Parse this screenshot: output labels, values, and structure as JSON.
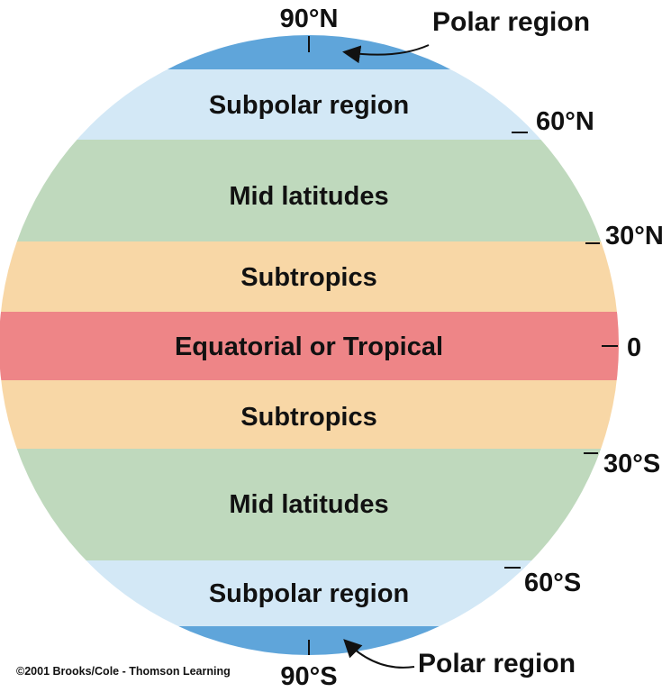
{
  "zones": [
    {
      "label": "",
      "color": "#5fa5da"
    },
    {
      "label": "Subpolar region",
      "color": "#d3e8f6"
    },
    {
      "label": "Mid latitudes",
      "color": "#bfd9bd"
    },
    {
      "label": "Subtropics",
      "color": "#f8d7a6"
    },
    {
      "label": "Equatorial or Tropical",
      "color": "#ee8587"
    },
    {
      "label": "Subtropics",
      "color": "#f8d7a6"
    },
    {
      "label": "Mid latitudes",
      "color": "#bfd9bd"
    },
    {
      "label": "Subpolar region",
      "color": "#d3e8f6"
    },
    {
      "label": "",
      "color": "#5fa5da"
    }
  ],
  "latitudes": {
    "north_pole": "90°N",
    "n60": "60°N",
    "n30": "30°N",
    "equator": "0",
    "s30": "30°S",
    "s60": "60°S",
    "south_pole": "90°S"
  },
  "callouts": {
    "north": "Polar region",
    "south": "Polar region"
  },
  "copyright": "©2001 Brooks/Cole - Thomson Learning"
}
